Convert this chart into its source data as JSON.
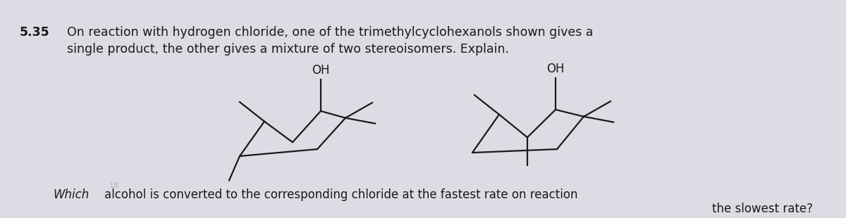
{
  "bg_color": "#dcdce4",
  "text_color": "#1a1a1a",
  "problem_number": "5.35",
  "line1": "On reaction with hydrogen chloride, one of the trimethylcyclohexanols shown gives a",
  "line2": "single product, the other gives a mixture of two stereoisomers. Explain.",
  "bottom_line1": "alcohol is converted to the corresponding chloride at the fastest rate on reaction",
  "bottom_line2": "the slowest rate?",
  "bottom_prefix": "Which",
  "fig_width": 12.0,
  "fig_height": 3.1,
  "dpi": 100,
  "mol1_oh_label": "OH",
  "mol2_oh_label": "OH"
}
